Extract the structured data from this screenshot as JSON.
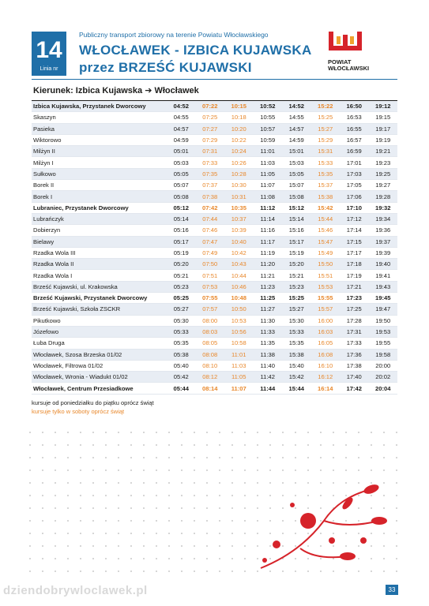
{
  "header": {
    "line_number": "14",
    "line_label": "Linia nr",
    "subtitle": "Publiczny transport zbiorowy na terenie Powiatu Włocławskiego",
    "title_line1": "WŁOCŁAWEK - IZBICA KUJAWSKA",
    "title_line2": "przez BRZEŚĆ KUJAWSKI",
    "logo_line1": "POWIAT",
    "logo_line2": "WŁOCŁAWSKI"
  },
  "direction": "Kierunek: Izbica Kujawska ➔ Włocławek",
  "table": {
    "rows": [
      [
        "Izbica Kujawska, Przystanek Dworcowy",
        "04:52",
        "07:22",
        "10:15",
        "10:52",
        "14:52",
        "15:22",
        "16:50",
        "19:12"
      ],
      [
        "Skaszyn",
        "04:55",
        "07:25",
        "10:18",
        "10:55",
        "14:55",
        "15:25",
        "16:53",
        "19:15"
      ],
      [
        "Pasieka",
        "04:57",
        "07:27",
        "10:20",
        "10:57",
        "14:57",
        "15:27",
        "16:55",
        "19:17"
      ],
      [
        "Wiktorowo",
        "04:59",
        "07:29",
        "10:22",
        "10:59",
        "14:59",
        "15:29",
        "16:57",
        "19:19"
      ],
      [
        "Milżyn II",
        "05:01",
        "07:31",
        "10:24",
        "11:01",
        "15:01",
        "15:31",
        "16:59",
        "19:21"
      ],
      [
        "Milżyn I",
        "05:03",
        "07:33",
        "10:26",
        "11:03",
        "15:03",
        "15:33",
        "17:01",
        "19:23"
      ],
      [
        "Sułkowo",
        "05:05",
        "07:35",
        "10:28",
        "11:05",
        "15:05",
        "15:35",
        "17:03",
        "19:25"
      ],
      [
        "Borek II",
        "05:07",
        "07:37",
        "10:30",
        "11:07",
        "15:07",
        "15:37",
        "17:05",
        "19:27"
      ],
      [
        "Borek I",
        "05:08",
        "07:38",
        "10:31",
        "11:08",
        "15:08",
        "15:38",
        "17:06",
        "19:28"
      ],
      [
        "Lubraniec, Przystanek Dworcowy",
        "05:12",
        "07:42",
        "10:35",
        "11:12",
        "15:12",
        "15:42",
        "17:10",
        "19:32"
      ],
      [
        "Lubrańczyk",
        "05:14",
        "07:44",
        "10:37",
        "11:14",
        "15:14",
        "15:44",
        "17:12",
        "19:34"
      ],
      [
        "Dobierzyn",
        "05:16",
        "07:46",
        "10:39",
        "11:16",
        "15:16",
        "15:46",
        "17:14",
        "19:36"
      ],
      [
        "Bielawy",
        "05:17",
        "07:47",
        "10:40",
        "11:17",
        "15:17",
        "15:47",
        "17:15",
        "19:37"
      ],
      [
        "Rzadka Wola III",
        "05:19",
        "07:49",
        "10:42",
        "11:19",
        "15:19",
        "15:49",
        "17:17",
        "19:39"
      ],
      [
        "Rzadka Wola II",
        "05:20",
        "07:50",
        "10:43",
        "11:20",
        "15:20",
        "15:50",
        "17:18",
        "19:40"
      ],
      [
        "Rzadka Wola I",
        "05:21",
        "07:51",
        "10:44",
        "11:21",
        "15:21",
        "15:51",
        "17:19",
        "19:41"
      ],
      [
        "Brześć Kujawski, ul. Krakowska",
        "05:23",
        "07:53",
        "10:46",
        "11:23",
        "15:23",
        "15:53",
        "17:21",
        "19:43"
      ],
      [
        "Brześć Kujawski, Przystanek Dworcowy",
        "05:25",
        "07:55",
        "10:48",
        "11:25",
        "15:25",
        "15:55",
        "17:23",
        "19:45"
      ],
      [
        "Brześć Kujawski, Szkoła ZSCKR",
        "05:27",
        "07:57",
        "10:50",
        "11:27",
        "15:27",
        "15:57",
        "17:25",
        "19:47"
      ],
      [
        "Pikutkowo",
        "05:30",
        "08:00",
        "10:53",
        "11:30",
        "15:30",
        "16:00",
        "17:28",
        "19:50"
      ],
      [
        "Józefowo",
        "05:33",
        "08:03",
        "10:56",
        "11:33",
        "15:33",
        "16:03",
        "17:31",
        "19:53"
      ],
      [
        "Łuba Druga",
        "05:35",
        "08:05",
        "10:58",
        "11:35",
        "15:35",
        "16:05",
        "17:33",
        "19:55"
      ],
      [
        "Włocławek, Szosa Brzeska 01/02",
        "05:38",
        "08:08",
        "11:01",
        "11:38",
        "15:38",
        "16:08",
        "17:36",
        "19:58"
      ],
      [
        "Włocławek, Filtrowa 01/02",
        "05:40",
        "08:10",
        "11:03",
        "11:40",
        "15:40",
        "16:10",
        "17:38",
        "20:00"
      ],
      [
        "Włocławek, Wronia - Wiadukt 01/02",
        "05:42",
        "08:12",
        "11:05",
        "11:42",
        "15:42",
        "16:12",
        "17:40",
        "20:02"
      ],
      [
        "Włocławek, Centrum Przesiadkowe",
        "05:44",
        "08:14",
        "11:07",
        "11:44",
        "15:44",
        "16:14",
        "17:42",
        "20:04"
      ]
    ]
  },
  "legend": [
    "kursuje od poniedziałku do piątku oprócz świąt",
    "kursuje tylko w soboty oprócz świąt"
  ],
  "footer": {
    "watermark": "dziendobrywloclawek.pl",
    "page_number": "33"
  }
}
